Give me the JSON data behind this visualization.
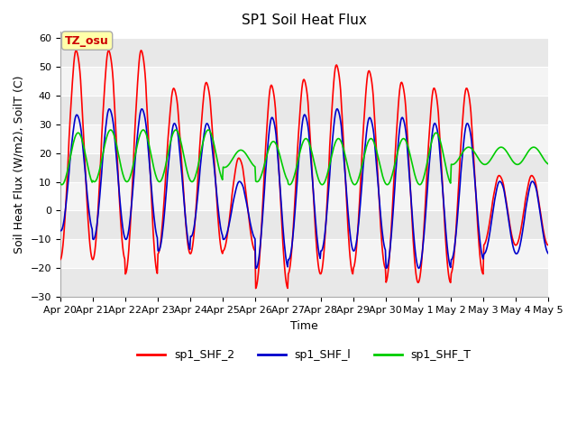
{
  "title": "SP1 Soil Heat Flux",
  "xlabel": "Time",
  "ylabel": "Soil Heat Flux (W/m2), SoilT (C)",
  "ylim": [
    -30,
    62
  ],
  "xlim_days": 15,
  "x_tick_labels": [
    "Apr 20",
    "Apr 21",
    "Apr 22",
    "Apr 23",
    "Apr 24",
    "Apr 25",
    "Apr 26",
    "Apr 27",
    "Apr 28",
    "Apr 29",
    "Apr 30",
    "May 1",
    "May 2",
    "May 3",
    "May 4",
    "May 5"
  ],
  "annotation_text": "TZ_osu",
  "annotation_color": "#cc0000",
  "annotation_bg": "#ffffaa",
  "annotation_border": "#aaaaaa",
  "color_shf2": "#ff0000",
  "color_shf1": "#0000cc",
  "color_shft": "#00cc00",
  "legend_labels": [
    "sp1_SHF_2",
    "sp1_SHF_l",
    "sp1_SHF_T"
  ],
  "fig_bg": "#ffffff",
  "plot_bg": "#ffffff",
  "band_dark": "#e8e8e8",
  "band_light": "#f4f4f4",
  "title_fontsize": 11,
  "label_fontsize": 9,
  "tick_fontsize": 8,
  "linewidth": 1.2
}
